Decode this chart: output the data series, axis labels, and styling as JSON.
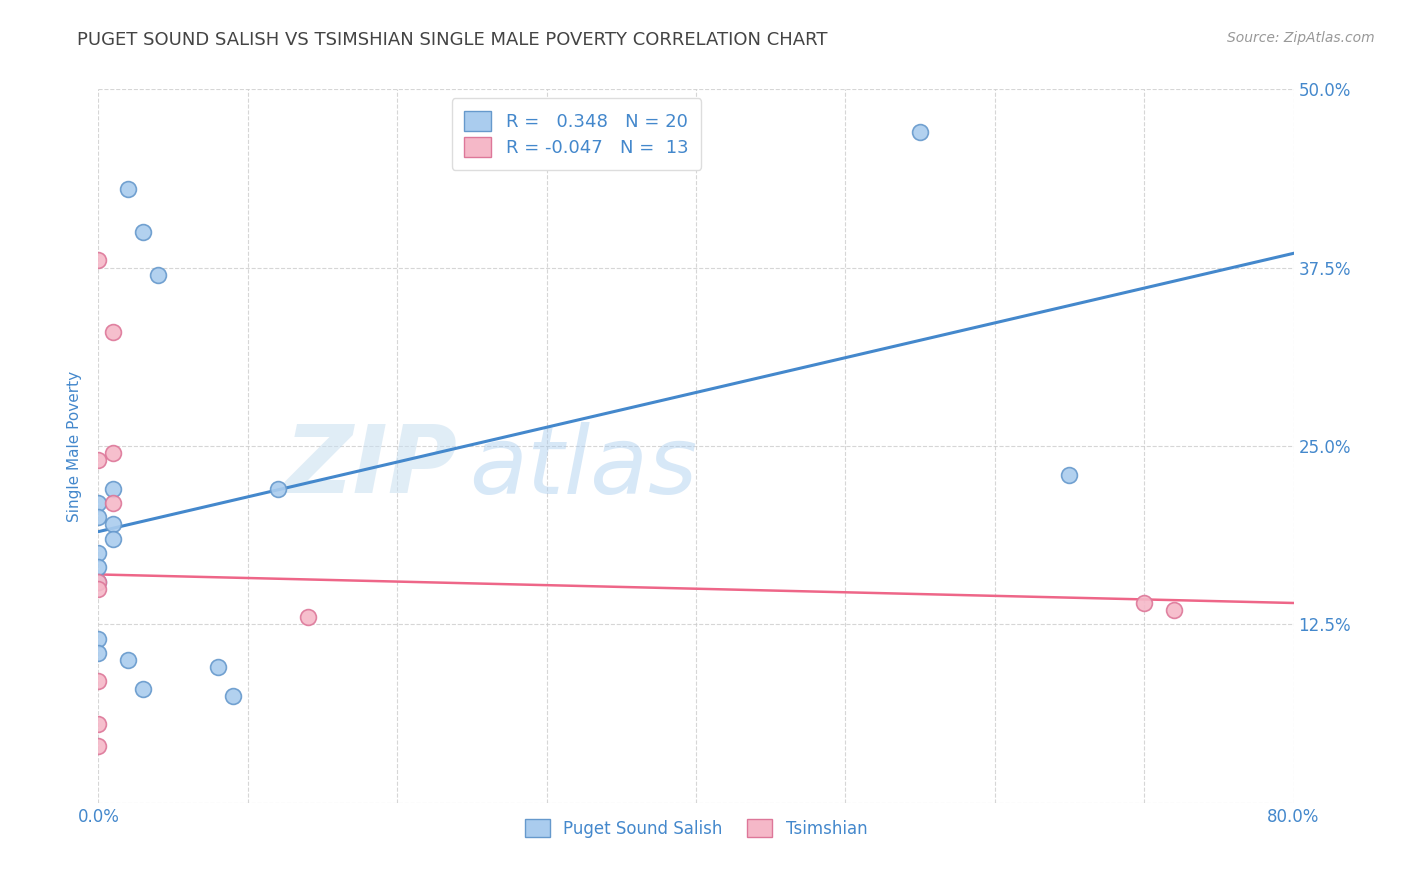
{
  "title": "PUGET SOUND SALISH VS TSIMSHIAN SINGLE MALE POVERTY CORRELATION CHART",
  "source": "Source: ZipAtlas.com",
  "ylabel": "Single Male Poverty",
  "xlim": [
    0.0,
    0.8
  ],
  "ylim": [
    0.0,
    0.5
  ],
  "xticks": [
    0.0,
    0.1,
    0.2,
    0.3,
    0.4,
    0.5,
    0.6,
    0.7,
    0.8
  ],
  "xticklabels": [
    "0.0%",
    "",
    "",
    "",
    "",
    "",
    "",
    "",
    "80.0%"
  ],
  "ytick_positions": [
    0.0,
    0.125,
    0.25,
    0.375,
    0.5
  ],
  "yticklabels": [
    "",
    "12.5%",
    "25.0%",
    "37.5%",
    "50.0%"
  ],
  "blue_R": 0.348,
  "blue_N": 20,
  "pink_R": -0.047,
  "pink_N": 13,
  "blue_scatter_x": [
    0.02,
    0.03,
    0.04,
    0.0,
    0.0,
    0.01,
    0.01,
    0.0,
    0.0,
    0.0,
    0.01,
    0.12,
    0.55,
    0.65,
    0.02,
    0.03,
    0.0,
    0.0,
    0.08,
    0.09
  ],
  "blue_scatter_y": [
    0.43,
    0.4,
    0.37,
    0.21,
    0.2,
    0.195,
    0.185,
    0.175,
    0.165,
    0.155,
    0.22,
    0.22,
    0.47,
    0.23,
    0.1,
    0.08,
    0.115,
    0.105,
    0.095,
    0.075
  ],
  "pink_scatter_x": [
    0.0,
    0.01,
    0.01,
    0.0,
    0.0,
    0.0,
    0.0,
    0.14,
    0.7,
    0.72,
    0.01,
    0.0,
    0.0
  ],
  "pink_scatter_y": [
    0.38,
    0.33,
    0.245,
    0.24,
    0.155,
    0.15,
    0.04,
    0.13,
    0.14,
    0.135,
    0.21,
    0.085,
    0.055
  ],
  "blue_line_x": [
    0.0,
    0.8
  ],
  "blue_line_y": [
    0.19,
    0.385
  ],
  "pink_line_x": [
    0.0,
    0.8
  ],
  "pink_line_y": [
    0.16,
    0.14
  ],
  "scatter_size": 130,
  "blue_color": "#aaccee",
  "blue_edge": "#6699cc",
  "pink_color": "#f5b8c8",
  "pink_edge": "#dd7799",
  "blue_line_color": "#4488cc",
  "pink_line_color": "#ee6688",
  "watermark_zip": "ZIP",
  "watermark_atlas": "atlas",
  "background_color": "#ffffff",
  "grid_color": "#cccccc",
  "title_color": "#444444",
  "axis_label_color": "#4488cc",
  "tick_color": "#4488cc",
  "legend_text_color": "#4488cc"
}
